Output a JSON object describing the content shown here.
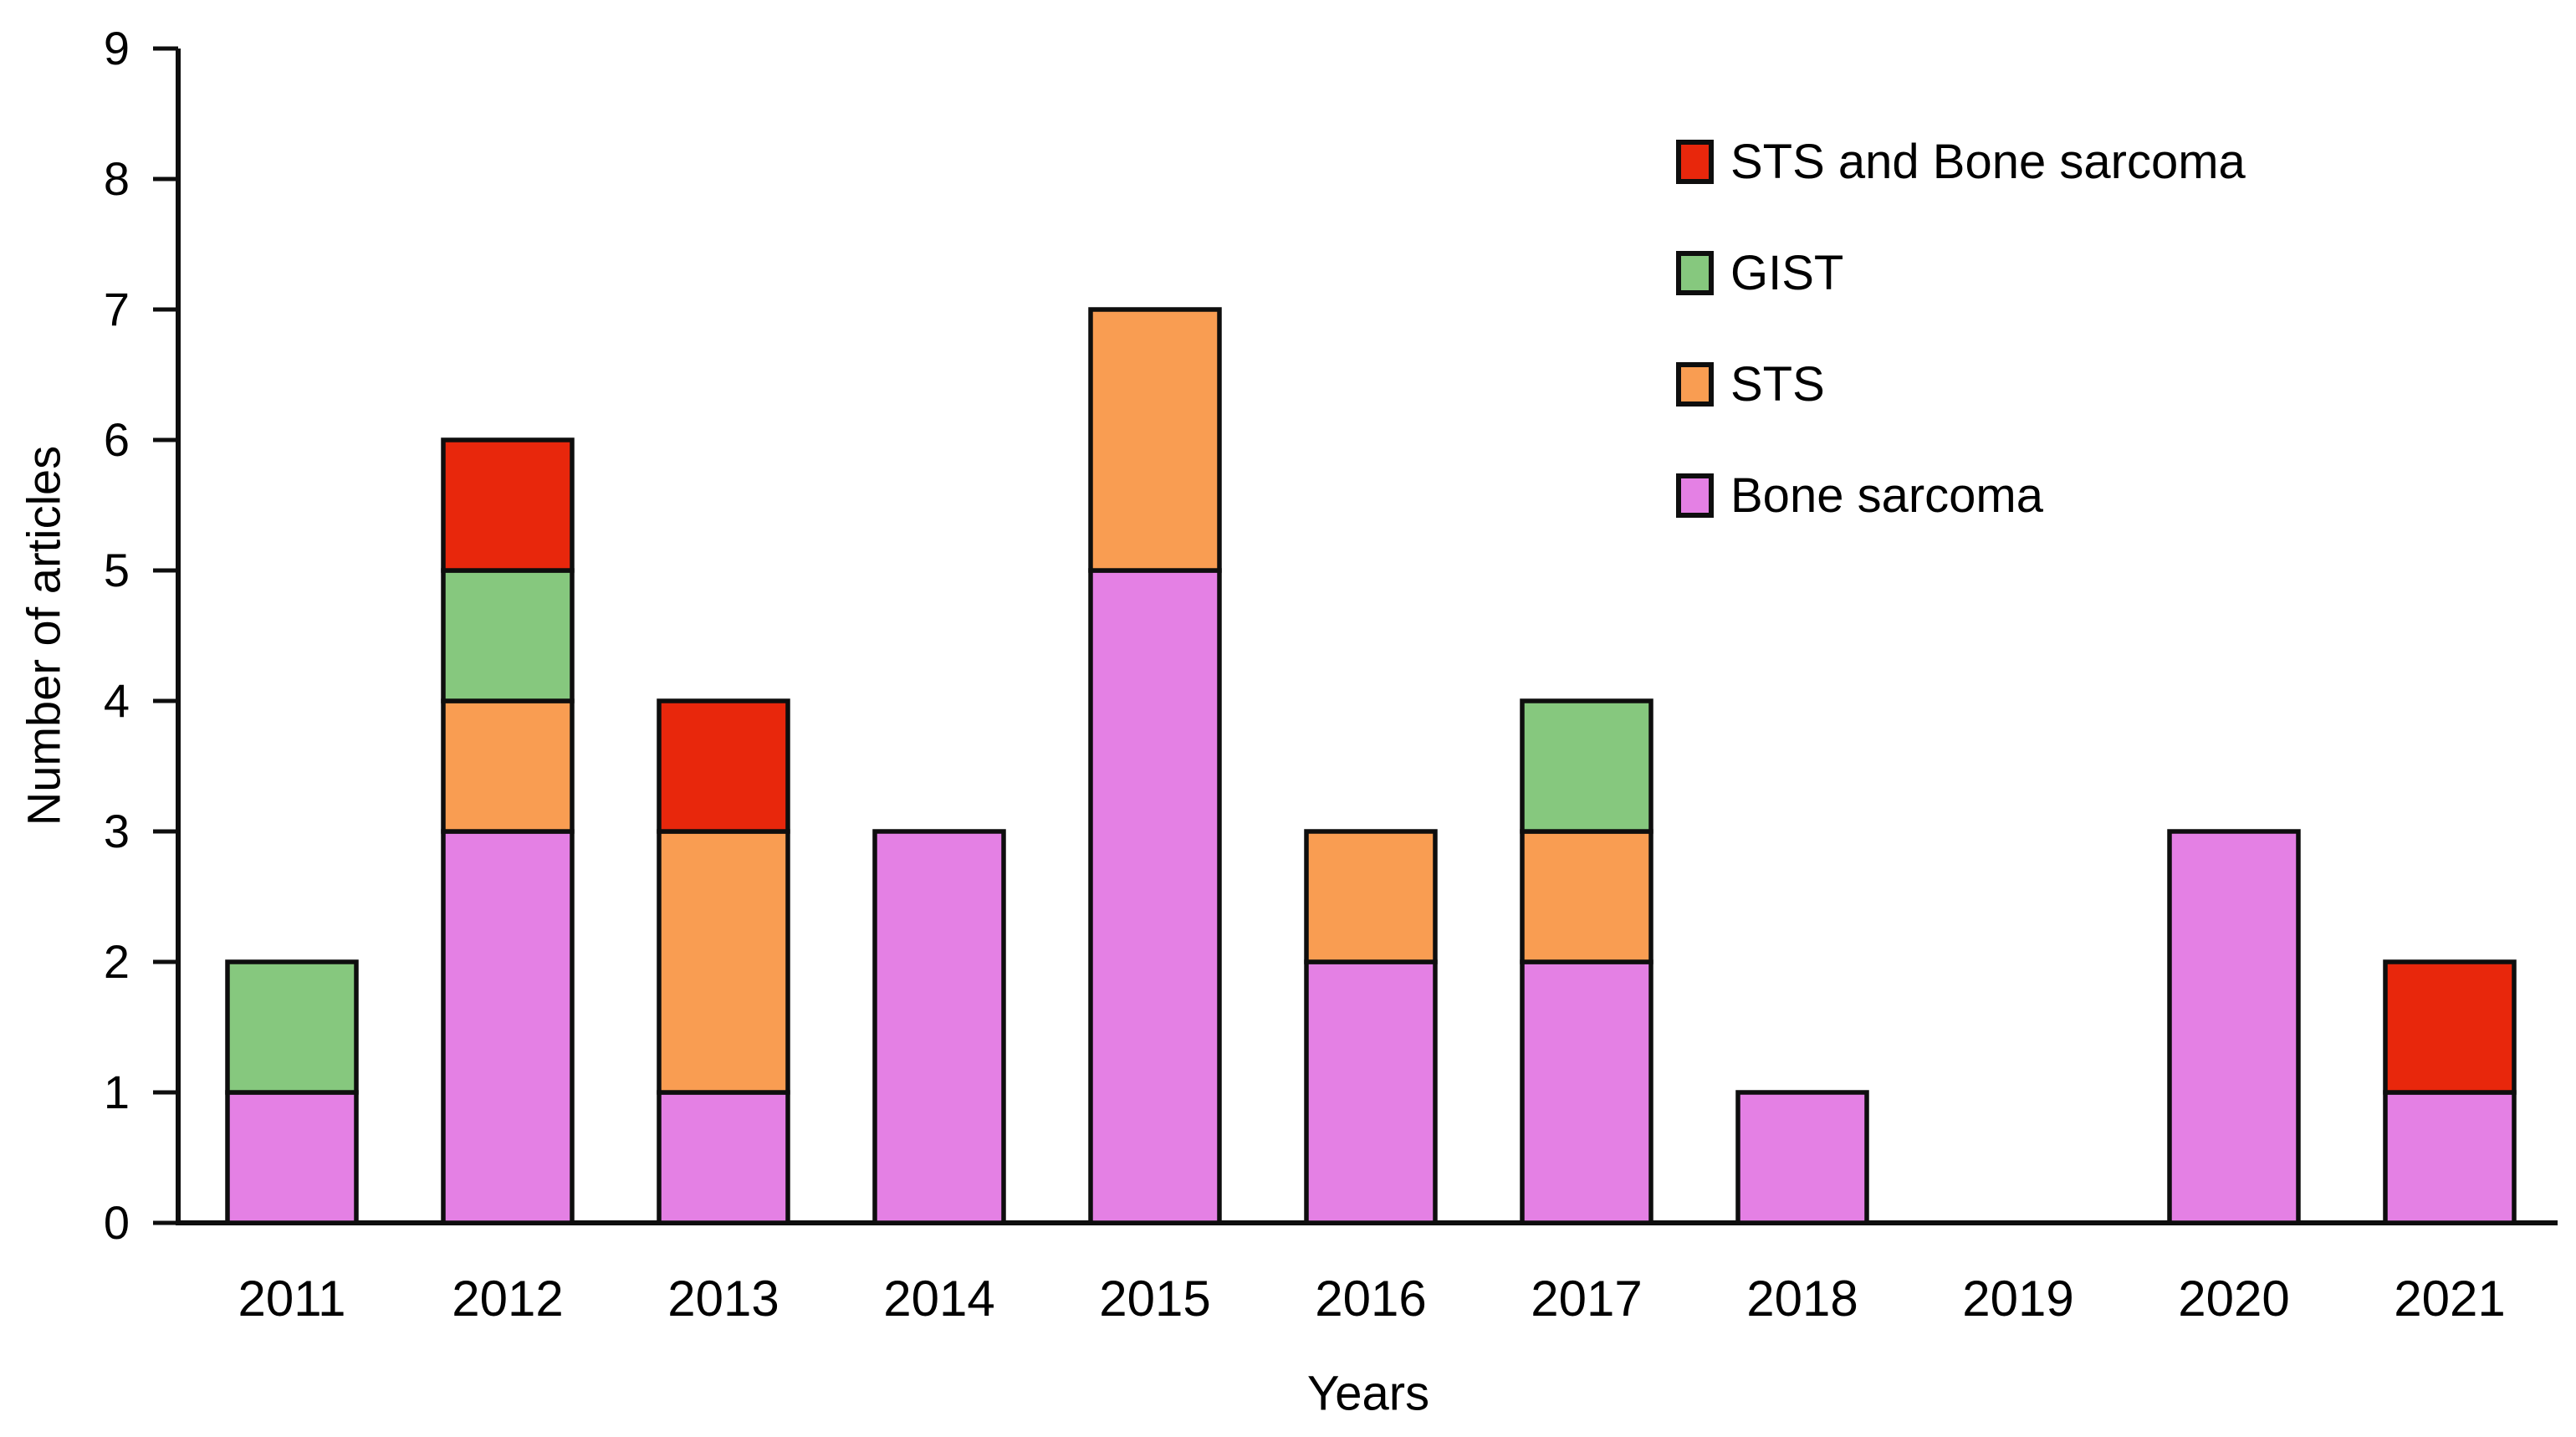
{
  "figure": {
    "background": "#ffffff",
    "axis_color": "#0e0e0e",
    "bar_outline_color": "#0e0e0e"
  },
  "chart_data": {
    "type": "bar",
    "stacked": true,
    "title": "",
    "xlabel": "Years",
    "ylabel": "Number of articles",
    "categories": [
      "2011",
      "2012",
      "2013",
      "2014",
      "2015",
      "2016",
      "2017",
      "2018",
      "2019",
      "2020",
      "2021"
    ],
    "ylim": [
      0,
      9
    ],
    "ytick_step": 1,
    "grid": false,
    "legend_position": "upper-right",
    "legend_order_top_to_bottom": [
      "STS and Bone sarcoma",
      "GIST",
      "STS",
      "Bone sarcoma"
    ],
    "series": [
      {
        "name": "Bone sarcoma",
        "color": "#E480E4",
        "values": [
          1,
          3,
          1,
          3,
          5,
          2,
          2,
          1,
          0,
          3,
          1
        ]
      },
      {
        "name": "STS",
        "color": "#F99D52",
        "values": [
          0,
          1,
          2,
          0,
          2,
          1,
          1,
          0,
          0,
          0,
          0
        ]
      },
      {
        "name": "GIST",
        "color": "#86C87E",
        "values": [
          1,
          1,
          0,
          0,
          0,
          0,
          1,
          0,
          0,
          0,
          0
        ]
      },
      {
        "name": "STS and Bone sarcoma",
        "color": "#E8270C",
        "values": [
          0,
          1,
          1,
          0,
          0,
          0,
          0,
          0,
          0,
          0,
          1
        ]
      }
    ],
    "totals_by_category": [
      2,
      6,
      4,
      3,
      7,
      3,
      4,
      1,
      0,
      3,
      2
    ]
  }
}
